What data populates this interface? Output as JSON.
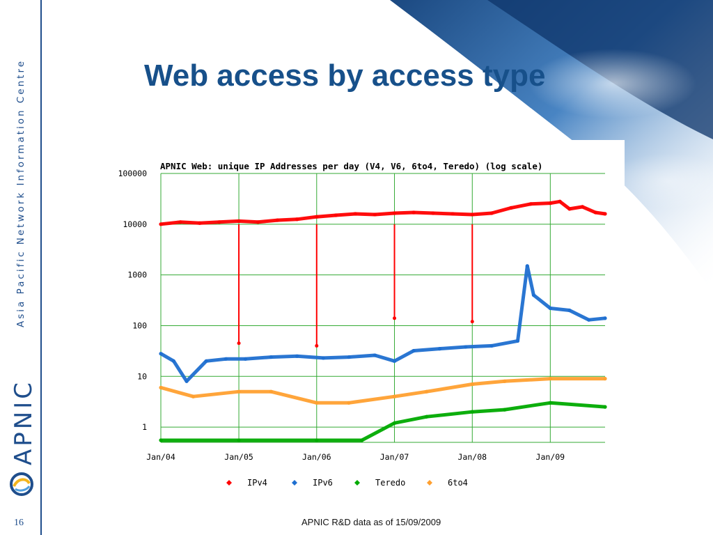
{
  "slide": {
    "title": "Web access by access type",
    "side_text": "Asia Pacific Network Information Centre",
    "logo_text": "APNIC",
    "slide_number": "16",
    "footer": "APNIC R&D data as of 15/09/2009"
  },
  "colors": {
    "brand_blue": "#1f4e8c",
    "title_blue": "#17508a",
    "grid": "#33aa33",
    "ipv4": "#ff0000",
    "ipv6": "#1f6fd0",
    "teredo": "#00aa00",
    "6to4": "#ffa030"
  },
  "chart_data": {
    "type": "line",
    "title": "APNIC Web: unique IP Addresses per day (V4, V6, 6to4, Teredo) (log scale)",
    "log_scale": true,
    "grid": true,
    "legend_position": "bottom",
    "xlim": [
      "2004-01-01",
      "2009-09-15"
    ],
    "ylim": [
      0.5,
      100000
    ],
    "x_ticks": [
      "Jan/04",
      "Jan/05",
      "Jan/06",
      "Jan/07",
      "Jan/08",
      "Jan/09"
    ],
    "y_ticks": [
      "100000",
      "10000",
      "1000",
      "100",
      "10",
      "1"
    ],
    "series": [
      {
        "name": "IPv4",
        "color": "#ff0000",
        "x": [
          "2004-01-01",
          "2004-04-01",
          "2004-07-01",
          "2004-10-01",
          "2005-01-01",
          "2005-04-01",
          "2005-07-01",
          "2005-10-01",
          "2006-01-01",
          "2006-04-01",
          "2006-07-01",
          "2006-10-01",
          "2007-01-01",
          "2007-04-01",
          "2007-07-01",
          "2007-10-01",
          "2008-01-01",
          "2008-04-01",
          "2008-07-01",
          "2008-10-01",
          "2009-01-01",
          "2009-02-15",
          "2009-04-01",
          "2009-06-01",
          "2009-08-01",
          "2009-09-15"
        ],
        "y": [
          10000,
          11000,
          10500,
          11000,
          11500,
          11000,
          12000,
          12500,
          14000,
          15000,
          16000,
          15500,
          16500,
          17000,
          16500,
          16000,
          15500,
          16500,
          21000,
          25000,
          26000,
          28000,
          20000,
          22000,
          17000,
          16000
        ]
      },
      {
        "name": "IPv6",
        "color": "#1f6fd0",
        "x": [
          "2004-01-01",
          "2004-03-01",
          "2004-05-01",
          "2004-08-01",
          "2004-11-01",
          "2005-02-01",
          "2005-06-01",
          "2005-10-01",
          "2006-02-01",
          "2006-06-01",
          "2006-10-01",
          "2007-01-01",
          "2007-04-01",
          "2007-08-01",
          "2007-12-01",
          "2008-04-01",
          "2008-08-01",
          "2008-09-15",
          "2008-10-15",
          "2009-01-01",
          "2009-04-01",
          "2009-07-01",
          "2009-09-15"
        ],
        "y": [
          28,
          20,
          8,
          20,
          22,
          22,
          24,
          25,
          23,
          24,
          26,
          20,
          32,
          35,
          38,
          40,
          50,
          1500,
          400,
          220,
          200,
          130,
          140
        ]
      },
      {
        "name": "Teredo",
        "color": "#00aa00",
        "x": [
          "2004-01-01",
          "2005-01-01",
          "2006-01-01",
          "2006-08-01",
          "2007-01-01",
          "2007-06-01",
          "2008-01-01",
          "2008-06-01",
          "2009-01-01",
          "2009-09-15"
        ],
        "y": [
          0.55,
          0.55,
          0.55,
          0.55,
          1.2,
          1.6,
          2,
          2.2,
          3,
          2.5
        ]
      },
      {
        "name": "6to4",
        "color": "#ffa030",
        "x": [
          "2004-01-01",
          "2004-06-01",
          "2005-01-01",
          "2005-06-01",
          "2006-01-01",
          "2006-06-01",
          "2007-01-01",
          "2007-06-01",
          "2008-01-01",
          "2008-06-01",
          "2009-01-01",
          "2009-09-15"
        ],
        "y": [
          6,
          4,
          5,
          5,
          3,
          3,
          4,
          5,
          7,
          8,
          9,
          9
        ]
      }
    ],
    "annotations": {
      "ipv4_dips": [
        {
          "x": "2005-01-01",
          "y": 45
        },
        {
          "x": "2006-01-01",
          "y": 40
        },
        {
          "x": "2007-01-01",
          "y": 140
        },
        {
          "x": "2008-01-01",
          "y": 120
        }
      ]
    }
  }
}
